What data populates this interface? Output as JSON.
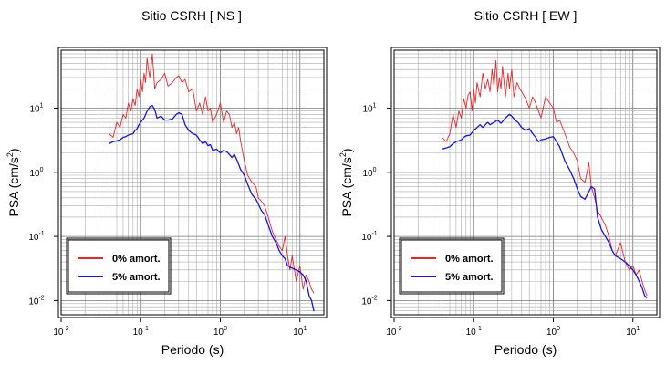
{
  "chart_data": [
    {
      "type": "line",
      "title": "Sitio CSRH [ NS ]",
      "xlabel": "Periodo (s)",
      "ylabel_main": "PSA (cm/s",
      "ylabel_sup": "2",
      "ylabel_close": ")",
      "xscale": "log",
      "yscale": "log",
      "xlim": [
        0.01,
        20
      ],
      "ylim": [
        0.006,
        80
      ],
      "xticks": [
        {
          "base": "10",
          "exp": "-2"
        },
        {
          "base": "10",
          "exp": "-1"
        },
        {
          "base": "10",
          "exp": "0"
        },
        {
          "base": "10",
          "exp": "1"
        }
      ],
      "yticks": [
        {
          "base": "10",
          "exp": "-2"
        },
        {
          "base": "10",
          "exp": "-1"
        },
        {
          "base": "10",
          "exp": "0"
        },
        {
          "base": "10",
          "exp": "1"
        }
      ],
      "grid": true,
      "legend_position": "bottom-left",
      "series": [
        {
          "name": "0% amort.",
          "color": "#e8262a",
          "x": [
            0.04,
            0.045,
            0.05,
            0.055,
            0.06,
            0.065,
            0.07,
            0.075,
            0.08,
            0.085,
            0.09,
            0.095,
            0.1,
            0.105,
            0.11,
            0.115,
            0.12,
            0.125,
            0.13,
            0.14,
            0.15,
            0.16,
            0.18,
            0.2,
            0.22,
            0.25,
            0.28,
            0.3,
            0.33,
            0.36,
            0.4,
            0.45,
            0.5,
            0.55,
            0.6,
            0.65,
            0.7,
            0.75,
            0.8,
            0.9,
            1.0,
            1.1,
            1.2,
            1.3,
            1.4,
            1.5,
            1.6,
            1.7,
            1.8,
            2.0,
            2.2,
            2.5,
            2.8,
            3.0,
            3.3,
            3.6,
            4.0,
            4.5,
            5.0,
            5.5,
            6.0,
            6.5,
            7.0,
            7.5,
            8.0,
            9.0,
            10.0,
            11.0,
            12.0,
            13.0,
            14.0,
            15.0
          ],
          "values": [
            4.0,
            3.5,
            6.0,
            5.0,
            8.0,
            7.0,
            12.0,
            9.0,
            14.0,
            11.0,
            20.0,
            15.0,
            28.0,
            18.0,
            35.0,
            25.0,
            60.0,
            40.0,
            30.0,
            70.0,
            20.0,
            25.0,
            28.0,
            35.0,
            22.0,
            25.0,
            30.0,
            32.0,
            25.0,
            28.0,
            18.0,
            20.0,
            9.0,
            12.0,
            8.0,
            15.0,
            9.0,
            10.0,
            6.0,
            8.0,
            12.0,
            6.0,
            9.0,
            8.0,
            5.0,
            6.0,
            4.0,
            5.0,
            3.0,
            1.5,
            0.9,
            0.7,
            0.6,
            0.4,
            0.35,
            0.3,
            0.2,
            0.12,
            0.09,
            0.07,
            0.06,
            0.1,
            0.05,
            0.03,
            0.05,
            0.02,
            0.035,
            0.015,
            0.025,
            0.02,
            0.015,
            0.013
          ]
        },
        {
          "name": "5% amort.",
          "color": "#1414e6",
          "x": [
            0.04,
            0.045,
            0.05,
            0.055,
            0.06,
            0.065,
            0.07,
            0.075,
            0.08,
            0.085,
            0.09,
            0.095,
            0.1,
            0.11,
            0.12,
            0.13,
            0.14,
            0.15,
            0.16,
            0.18,
            0.2,
            0.22,
            0.25,
            0.28,
            0.3,
            0.33,
            0.36,
            0.4,
            0.45,
            0.5,
            0.55,
            0.6,
            0.65,
            0.7,
            0.75,
            0.8,
            0.9,
            1.0,
            1.1,
            1.2,
            1.3,
            1.4,
            1.5,
            1.6,
            1.8,
            2.0,
            2.2,
            2.5,
            2.8,
            3.0,
            3.3,
            3.6,
            4.0,
            4.5,
            5.0,
            5.5,
            6.0,
            6.5,
            7.0,
            8.0,
            9.0,
            10.0,
            11.0,
            12.0,
            13.0,
            14.0,
            15.0
          ],
          "values": [
            2.8,
            3.0,
            3.1,
            3.2,
            3.5,
            3.6,
            3.8,
            3.9,
            4.0,
            4.5,
            4.8,
            5.5,
            6.0,
            7.0,
            9.0,
            10.5,
            11.0,
            9.5,
            7.0,
            7.5,
            6.5,
            6.5,
            6.8,
            8.0,
            8.5,
            8.0,
            5.5,
            4.5,
            4.0,
            3.8,
            3.2,
            2.8,
            3.0,
            2.6,
            2.7,
            2.2,
            2.3,
            2.0,
            2.2,
            2.1,
            1.9,
            1.7,
            1.9,
            1.6,
            1.1,
            0.9,
            0.65,
            0.45,
            0.38,
            0.32,
            0.25,
            0.22,
            0.15,
            0.1,
            0.08,
            0.06,
            0.05,
            0.045,
            0.035,
            0.032,
            0.03,
            0.028,
            0.025,
            0.02,
            0.012,
            0.01,
            0.0068
          ]
        }
      ]
    },
    {
      "type": "line",
      "title": "Sitio CSRH [ EW ]",
      "xlabel": "Periodo (s)",
      "ylabel_main": "PSA (cm/s",
      "ylabel_sup": "2",
      "ylabel_close": ")",
      "xscale": "log",
      "yscale": "log",
      "xlim": [
        0.01,
        20
      ],
      "ylim": [
        0.006,
        80
      ],
      "xticks": [
        {
          "base": "10",
          "exp": "-2"
        },
        {
          "base": "10",
          "exp": "-1"
        },
        {
          "base": "10",
          "exp": "0"
        },
        {
          "base": "10",
          "exp": "1"
        }
      ],
      "yticks": [
        {
          "base": "10",
          "exp": "-2"
        },
        {
          "base": "10",
          "exp": "-1"
        },
        {
          "base": "10",
          "exp": "0"
        },
        {
          "base": "10",
          "exp": "1"
        }
      ],
      "grid": true,
      "legend_position": "bottom-left",
      "series": [
        {
          "name": "0% amort.",
          "color": "#e8262a",
          "x": [
            0.04,
            0.045,
            0.05,
            0.055,
            0.06,
            0.065,
            0.07,
            0.075,
            0.08,
            0.085,
            0.09,
            0.095,
            0.1,
            0.105,
            0.11,
            0.12,
            0.13,
            0.14,
            0.15,
            0.16,
            0.17,
            0.18,
            0.19,
            0.2,
            0.21,
            0.22,
            0.23,
            0.25,
            0.27,
            0.28,
            0.3,
            0.32,
            0.35,
            0.38,
            0.4,
            0.45,
            0.5,
            0.55,
            0.6,
            0.65,
            0.7,
            0.8,
            0.9,
            1.0,
            1.1,
            1.2,
            1.4,
            1.6,
            1.8,
            2.0,
            2.2,
            2.5,
            2.8,
            3.0,
            3.3,
            3.6,
            4.0,
            4.5,
            5.0,
            5.5,
            6.0,
            7.0,
            8.0,
            9.0,
            10.0,
            11.0,
            12.0,
            13.0,
            14.0,
            15.0
          ],
          "values": [
            3.5,
            3.0,
            4.0,
            8.0,
            5.0,
            9.0,
            7.0,
            14.0,
            10.0,
            16.0,
            18.0,
            9.0,
            20.0,
            12.0,
            25.0,
            15.0,
            35.0,
            20.0,
            28.0,
            18.0,
            40.0,
            22.0,
            55.0,
            18.0,
            30.0,
            20.0,
            45.0,
            15.0,
            35.0,
            20.0,
            40.0,
            15.0,
            25.0,
            20.0,
            18.0,
            14.0,
            10.0,
            15.0,
            12.0,
            9.0,
            7.0,
            15.0,
            12.0,
            10.0,
            6.0,
            6.5,
            4.0,
            2.5,
            2.0,
            1.5,
            0.8,
            0.7,
            1.4,
            0.6,
            0.4,
            0.25,
            0.2,
            0.15,
            0.1,
            0.06,
            0.05,
            0.08,
            0.04,
            0.03,
            0.035,
            0.025,
            0.03,
            0.02,
            0.015,
            0.012
          ]
        },
        {
          "name": "5% amort.",
          "color": "#1414e6",
          "x": [
            0.04,
            0.045,
            0.05,
            0.055,
            0.06,
            0.065,
            0.07,
            0.075,
            0.08,
            0.09,
            0.1,
            0.11,
            0.12,
            0.13,
            0.14,
            0.15,
            0.16,
            0.18,
            0.2,
            0.22,
            0.25,
            0.28,
            0.3,
            0.33,
            0.36,
            0.4,
            0.45,
            0.5,
            0.55,
            0.6,
            0.65,
            0.7,
            0.8,
            0.9,
            1.0,
            1.1,
            1.2,
            1.4,
            1.6,
            1.8,
            2.0,
            2.2,
            2.5,
            2.8,
            3.0,
            3.3,
            3.6,
            4.0,
            4.5,
            5.0,
            5.5,
            6.0,
            7.0,
            8.0,
            9.0,
            10.0,
            11.0,
            12.0,
            13.0,
            14.0,
            15.0
          ],
          "values": [
            2.3,
            2.4,
            2.5,
            2.8,
            3.0,
            3.1,
            3.2,
            3.5,
            3.7,
            3.8,
            4.5,
            5.0,
            5.5,
            5.0,
            5.5,
            6.0,
            5.5,
            6.0,
            6.5,
            5.8,
            7.0,
            8.0,
            7.5,
            6.5,
            6.0,
            5.0,
            4.5,
            4.8,
            4.0,
            3.5,
            3.0,
            3.2,
            3.3,
            3.5,
            3.6,
            3.0,
            2.5,
            1.5,
            1.1,
            0.8,
            0.55,
            0.42,
            0.38,
            0.5,
            0.6,
            0.55,
            0.2,
            0.13,
            0.1,
            0.08,
            0.06,
            0.05,
            0.045,
            0.04,
            0.035,
            0.03,
            0.025,
            0.02,
            0.016,
            0.012,
            0.011
          ]
        }
      ]
    }
  ]
}
